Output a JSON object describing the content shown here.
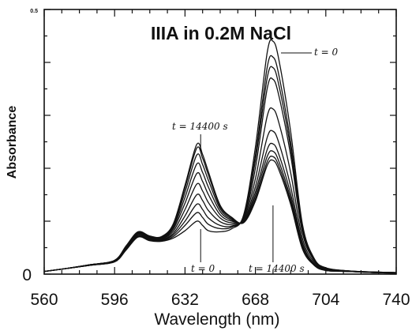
{
  "chart_data": {
    "type": "line",
    "title": "IIIA in 0.2M NaCl",
    "xlabel": "Wavelength (nm)",
    "ylabel": "Absorbance",
    "xlim": [
      560,
      740
    ],
    "ylim": [
      0,
      0.5
    ],
    "x_ticks": [
      "560",
      "596",
      "632",
      "668",
      "704",
      "740"
    ],
    "y_ticks": [
      "0",
      "0.5"
    ],
    "grid": false,
    "annotations": [
      {
        "text": "t = 0",
        "x": 683,
        "y": 0.44
      },
      {
        "text": "t = 14400 s",
        "x": 640,
        "y": 0.245
      },
      {
        "text": "t = 0",
        "x": 640,
        "y": 0.012
      },
      {
        "text": "t = 14400 s",
        "x": 677,
        "y": 0.012
      }
    ],
    "x": [
      560,
      572,
      584,
      596,
      602,
      608,
      614,
      620,
      626,
      632,
      638,
      641,
      644,
      650,
      656,
      662,
      668,
      674,
      677,
      680,
      686,
      692,
      698,
      704,
      716,
      728,
      740
    ],
    "series": [
      {
        "values": [
          0.005,
          0.011,
          0.017,
          0.023,
          0.046,
          0.07,
          0.063,
          0.062,
          0.068,
          0.082,
          0.1,
          0.092,
          0.082,
          0.08,
          0.086,
          0.112,
          0.24,
          0.418,
          0.44,
          0.405,
          0.27,
          0.095,
          0.03,
          0.012,
          0.006,
          0.004,
          0.003
        ]
      },
      {
        "values": [
          0.005,
          0.011,
          0.017,
          0.024,
          0.047,
          0.071,
          0.064,
          0.063,
          0.071,
          0.092,
          0.116,
          0.107,
          0.094,
          0.086,
          0.089,
          0.11,
          0.225,
          0.39,
          0.41,
          0.376,
          0.25,
          0.088,
          0.028,
          0.011,
          0.006,
          0.004,
          0.003
        ]
      },
      {
        "values": [
          0.005,
          0.011,
          0.017,
          0.024,
          0.048,
          0.072,
          0.065,
          0.064,
          0.074,
          0.1,
          0.132,
          0.122,
          0.106,
          0.092,
          0.091,
          0.108,
          0.215,
          0.37,
          0.39,
          0.357,
          0.238,
          0.084,
          0.027,
          0.011,
          0.006,
          0.004,
          0.003
        ]
      },
      {
        "values": [
          0.005,
          0.011,
          0.017,
          0.024,
          0.049,
          0.073,
          0.066,
          0.065,
          0.077,
          0.11,
          0.15,
          0.139,
          0.12,
          0.099,
          0.094,
          0.106,
          0.2,
          0.35,
          0.368,
          0.337,
          0.225,
          0.079,
          0.026,
          0.01,
          0.006,
          0.004,
          0.003
        ]
      },
      {
        "values": [
          0.005,
          0.011,
          0.017,
          0.025,
          0.05,
          0.075,
          0.067,
          0.066,
          0.081,
          0.122,
          0.17,
          0.157,
          0.135,
          0.106,
          0.097,
          0.104,
          0.18,
          0.298,
          0.312,
          0.286,
          0.192,
          0.068,
          0.023,
          0.009,
          0.005,
          0.003,
          0.002
        ]
      },
      {
        "values": [
          0.005,
          0.011,
          0.018,
          0.025,
          0.051,
          0.076,
          0.068,
          0.067,
          0.085,
          0.134,
          0.19,
          0.175,
          0.15,
          0.112,
          0.1,
          0.102,
          0.165,
          0.258,
          0.27,
          0.248,
          0.166,
          0.06,
          0.02,
          0.008,
          0.005,
          0.003,
          0.002
        ]
      },
      {
        "values": [
          0.005,
          0.011,
          0.018,
          0.025,
          0.052,
          0.077,
          0.069,
          0.068,
          0.088,
          0.145,
          0.208,
          0.192,
          0.164,
          0.118,
          0.102,
          0.1,
          0.155,
          0.235,
          0.246,
          0.226,
          0.152,
          0.055,
          0.019,
          0.008,
          0.005,
          0.003,
          0.002
        ]
      },
      {
        "values": [
          0.005,
          0.011,
          0.018,
          0.026,
          0.053,
          0.078,
          0.07,
          0.069,
          0.091,
          0.155,
          0.225,
          0.207,
          0.177,
          0.123,
          0.104,
          0.099,
          0.148,
          0.222,
          0.232,
          0.213,
          0.143,
          0.052,
          0.018,
          0.007,
          0.005,
          0.003,
          0.002
        ]
      },
      {
        "values": [
          0.005,
          0.011,
          0.018,
          0.026,
          0.053,
          0.079,
          0.071,
          0.07,
          0.093,
          0.163,
          0.238,
          0.219,
          0.187,
          0.127,
          0.106,
          0.098,
          0.142,
          0.212,
          0.222,
          0.204,
          0.137,
          0.05,
          0.017,
          0.007,
          0.005,
          0.003,
          0.002
        ]
      },
      {
        "values": [
          0.005,
          0.011,
          0.018,
          0.026,
          0.054,
          0.08,
          0.072,
          0.071,
          0.095,
          0.168,
          0.245,
          0.226,
          0.193,
          0.13,
          0.107,
          0.097,
          0.138,
          0.205,
          0.215,
          0.197,
          0.132,
          0.048,
          0.017,
          0.007,
          0.005,
          0.003,
          0.002
        ]
      }
    ]
  }
}
